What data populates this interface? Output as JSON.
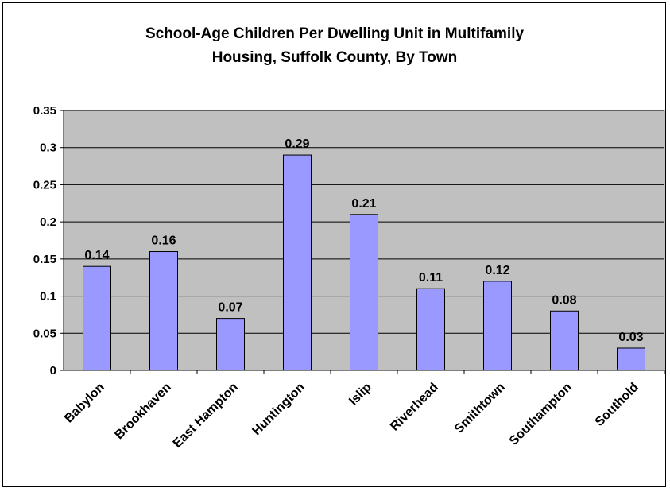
{
  "chart_data": {
    "type": "bar",
    "title": "School-Age Children Per Dwelling Unit in Multifamily Housing, Suffolk County, By Town",
    "title_lines": [
      "School-Age Children Per Dwelling Unit in Multifamily",
      "Housing, Suffolk County, By Town"
    ],
    "categories": [
      "Babylon",
      "Brookhaven",
      "East Hampton",
      "Huntington",
      "Islip",
      "Riverhead",
      "Smithtown",
      "Southampton",
      "Southold"
    ],
    "values": [
      0.14,
      0.16,
      0.07,
      0.29,
      0.21,
      0.11,
      0.12,
      0.08,
      0.03
    ],
    "data_labels": [
      "0.14",
      "0.16",
      "0.07",
      "0.29",
      "0.21",
      "0.11",
      "0.12",
      "0.08",
      "0.03"
    ],
    "y_ticks": [
      0,
      0.05,
      0.1,
      0.15,
      0.2,
      0.25,
      0.3,
      0.35
    ],
    "y_tick_labels": [
      "0",
      "0.05",
      "0.1",
      "0.15",
      "0.2",
      "0.25",
      "0.3",
      "0.35"
    ],
    "ylim": [
      0,
      0.35
    ],
    "xlabel": "",
    "ylabel": "",
    "grid": true,
    "legend": "none",
    "colors": {
      "bar_fill": "#9999ff",
      "bar_stroke": "#000000",
      "plot_background": "#c0c0c0",
      "gridline": "#000000"
    }
  }
}
